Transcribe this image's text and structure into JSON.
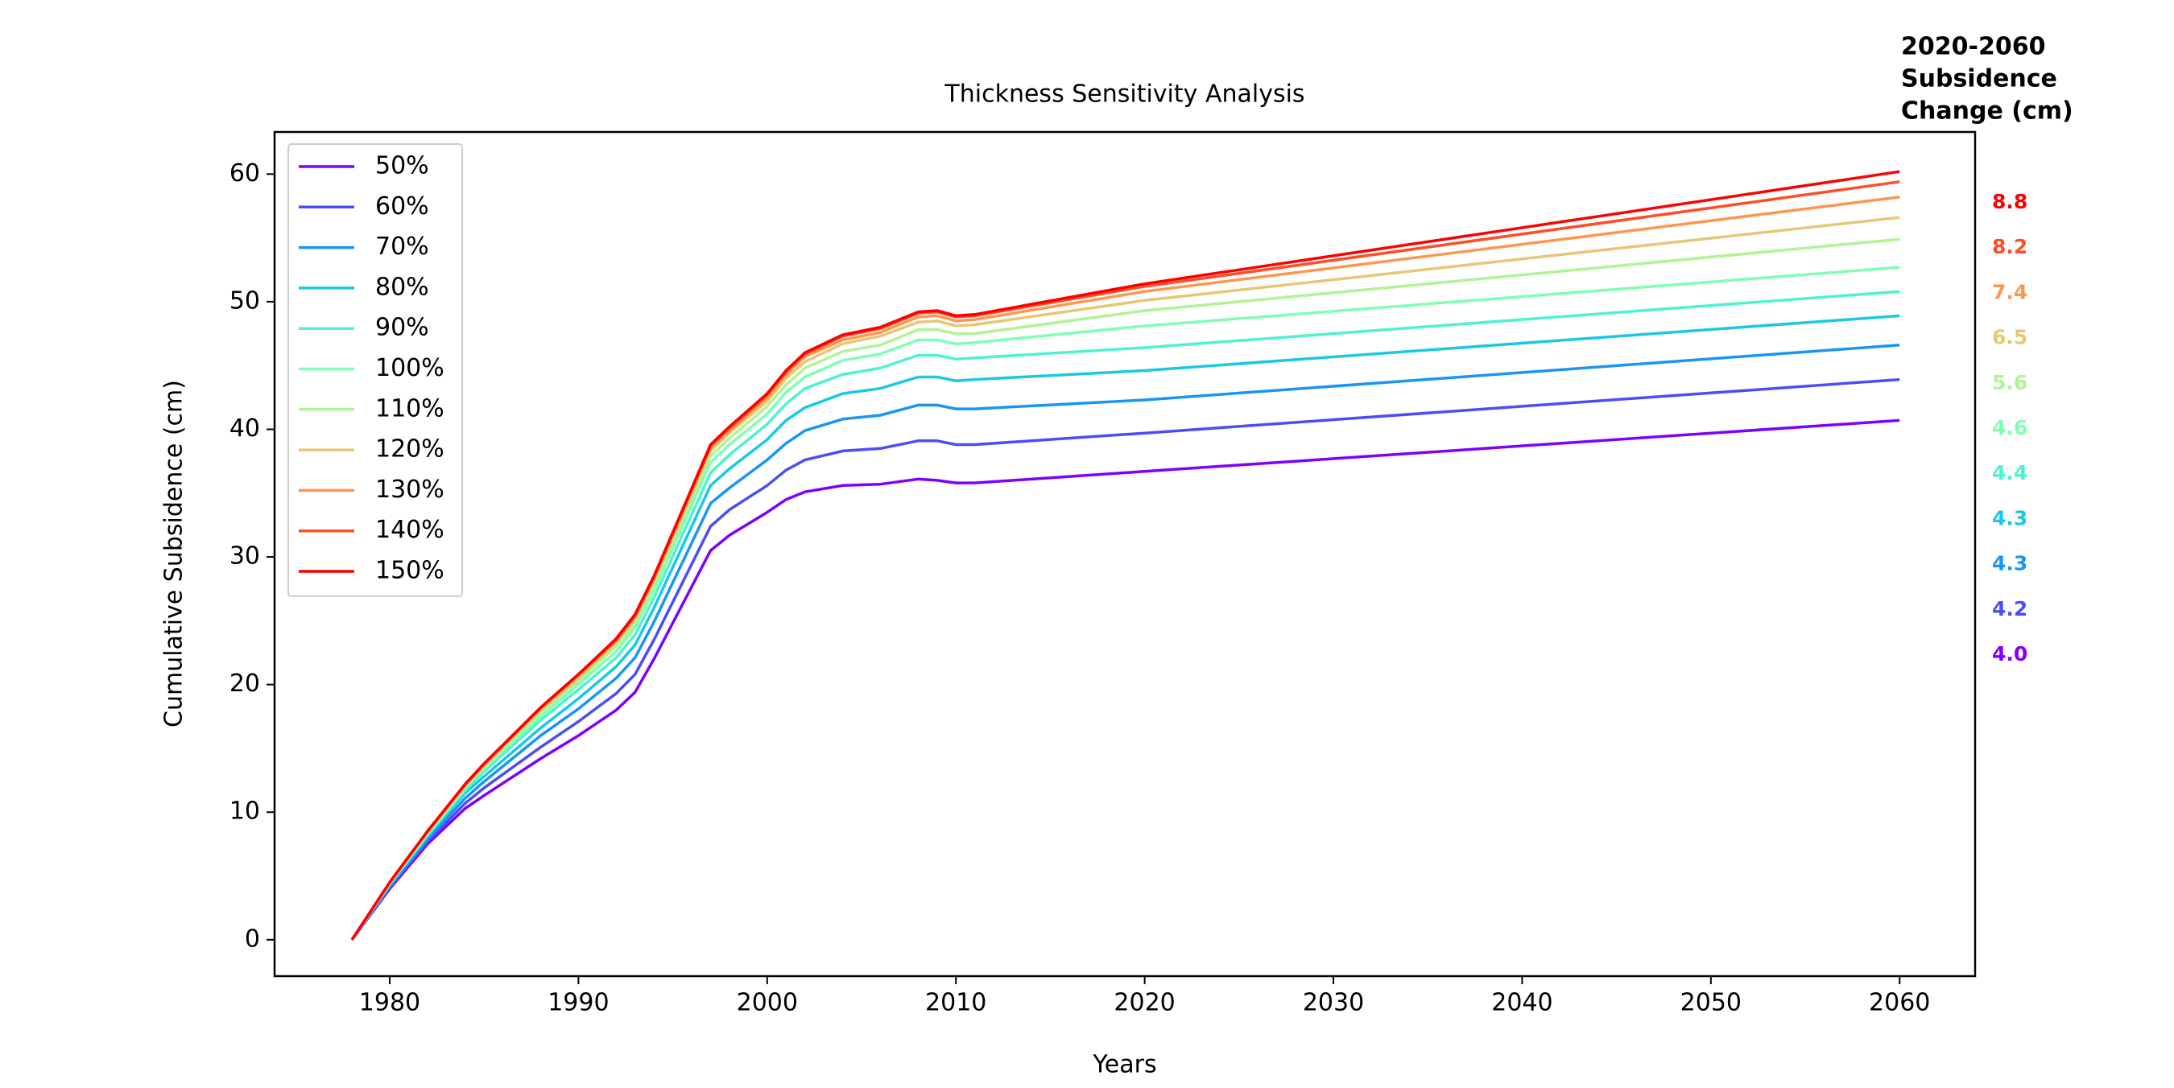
{
  "chart_data": {
    "type": "line",
    "title": "Thickness Sensitivity Analysis",
    "x_label": "Years",
    "y_label": "Cumulative Subsidence (cm)",
    "xlim": [
      1973.9,
      2064.0
    ],
    "ylim": [
      -2.85,
      63.3
    ],
    "xticks": [
      1980,
      1990,
      2000,
      2010,
      2020,
      2030,
      2040,
      2050,
      2060
    ],
    "yticks": [
      0,
      10,
      20,
      30,
      40,
      50,
      60
    ],
    "legend": "upper left",
    "x": [
      1978,
      1980,
      1982,
      1984,
      1985,
      1988,
      1990,
      1992,
      1993,
      1994,
      1997,
      1998,
      2000,
      2001,
      2002,
      2004,
      2006,
      2008,
      2009,
      2010,
      2011,
      2020,
      2060
    ],
    "series": [
      {
        "name": "50%",
        "color": "#8000ff",
        "values": [
          0,
          4.0,
          7.5,
          10.3,
          11.3,
          14.2,
          16.0,
          18.0,
          19.4,
          22.0,
          30.5,
          31.7,
          33.5,
          34.5,
          35.1,
          35.6,
          35.7,
          36.1,
          36.0,
          35.8,
          35.8,
          36.7,
          40.7
        ]
      },
      {
        "name": "60%",
        "color": "#4d4df8",
        "values": [
          0,
          4.1,
          7.7,
          10.7,
          11.9,
          15.1,
          17.1,
          19.3,
          20.8,
          23.5,
          32.4,
          33.7,
          35.6,
          36.8,
          37.6,
          38.3,
          38.5,
          39.1,
          39.1,
          38.8,
          38.8,
          39.7,
          43.9
        ]
      },
      {
        "name": "70%",
        "color": "#1996f3",
        "values": [
          0,
          4.2,
          7.9,
          11.1,
          12.4,
          16.0,
          18.1,
          20.5,
          22.1,
          24.9,
          34.2,
          35.4,
          37.6,
          38.9,
          39.9,
          40.8,
          41.1,
          41.9,
          41.9,
          41.6,
          41.6,
          42.3,
          46.6
        ]
      },
      {
        "name": "80%",
        "color": "#1ac7e6",
        "values": [
          0,
          4.3,
          8.1,
          11.5,
          12.8,
          16.6,
          18.9,
          21.4,
          23.1,
          26.0,
          35.6,
          36.9,
          39.2,
          40.7,
          41.7,
          42.8,
          43.2,
          44.1,
          44.1,
          43.8,
          43.9,
          44.6,
          48.9
        ]
      },
      {
        "name": "90%",
        "color": "#4df3ce",
        "values": [
          0,
          4.4,
          8.2,
          11.7,
          13.2,
          17.2,
          19.6,
          22.1,
          23.9,
          26.8,
          36.6,
          38.0,
          40.4,
          42.0,
          43.2,
          44.3,
          44.8,
          45.8,
          45.8,
          45.5,
          45.6,
          46.4,
          50.8
        ]
      },
      {
        "name": "100%",
        "color": "#80ffb4",
        "values": [
          0,
          4.4,
          8.3,
          11.9,
          13.4,
          17.5,
          20.0,
          22.6,
          24.5,
          27.4,
          37.4,
          38.8,
          41.2,
          42.9,
          44.1,
          45.4,
          45.9,
          47.0,
          47.0,
          46.7,
          46.8,
          48.1,
          52.7
        ]
      },
      {
        "name": "110%",
        "color": "#b2f396",
        "values": [
          0,
          4.4,
          8.4,
          12.0,
          13.5,
          17.8,
          20.3,
          23.0,
          24.8,
          27.8,
          37.9,
          39.3,
          41.8,
          43.5,
          44.8,
          46.1,
          46.6,
          47.8,
          47.8,
          47.5,
          47.5,
          49.3,
          54.9
        ]
      },
      {
        "name": "120%",
        "color": "#e6c774",
        "values": [
          0,
          4.5,
          8.4,
          12.1,
          13.7,
          18.0,
          20.5,
          23.3,
          25.1,
          28.1,
          38.3,
          39.7,
          42.2,
          44.0,
          45.3,
          46.7,
          47.3,
          48.4,
          48.5,
          48.1,
          48.2,
          50.1,
          56.6
        ]
      },
      {
        "name": "130%",
        "color": "#ff964f",
        "values": [
          0,
          4.5,
          8.5,
          12.1,
          13.7,
          18.1,
          20.7,
          23.4,
          25.3,
          28.3,
          38.6,
          39.9,
          42.5,
          44.3,
          45.7,
          47.0,
          47.6,
          48.8,
          48.9,
          48.5,
          48.6,
          50.8,
          58.2
        ]
      },
      {
        "name": "140%",
        "color": "#ff4d27",
        "values": [
          0,
          4.5,
          8.5,
          12.2,
          13.8,
          18.2,
          20.8,
          23.5,
          25.4,
          28.4,
          38.7,
          40.1,
          42.7,
          44.5,
          45.9,
          47.3,
          47.9,
          49.1,
          49.2,
          48.8,
          48.9,
          51.2,
          59.4
        ]
      },
      {
        "name": "150%",
        "color": "#ff0000",
        "values": [
          0,
          4.5,
          8.5,
          12.2,
          13.8,
          18.2,
          20.8,
          23.6,
          25.5,
          28.5,
          38.8,
          40.2,
          42.8,
          44.6,
          46.0,
          47.4,
          48.0,
          49.2,
          49.3,
          48.9,
          49.0,
          51.4,
          60.2
        ]
      }
    ],
    "changes": {
      "title": [
        "2020-2060",
        "Subsidence",
        "Change (cm)"
      ],
      "values": [
        4.0,
        4.2,
        4.3,
        4.3,
        4.4,
        4.6,
        5.6,
        6.5,
        7.4,
        8.2,
        8.8
      ],
      "value_labels": [
        "4.0",
        "4.2",
        "4.3",
        "4.3",
        "4.4",
        "4.6",
        "5.6",
        "6.5",
        "7.4",
        "8.2",
        "8.8"
      ]
    }
  }
}
